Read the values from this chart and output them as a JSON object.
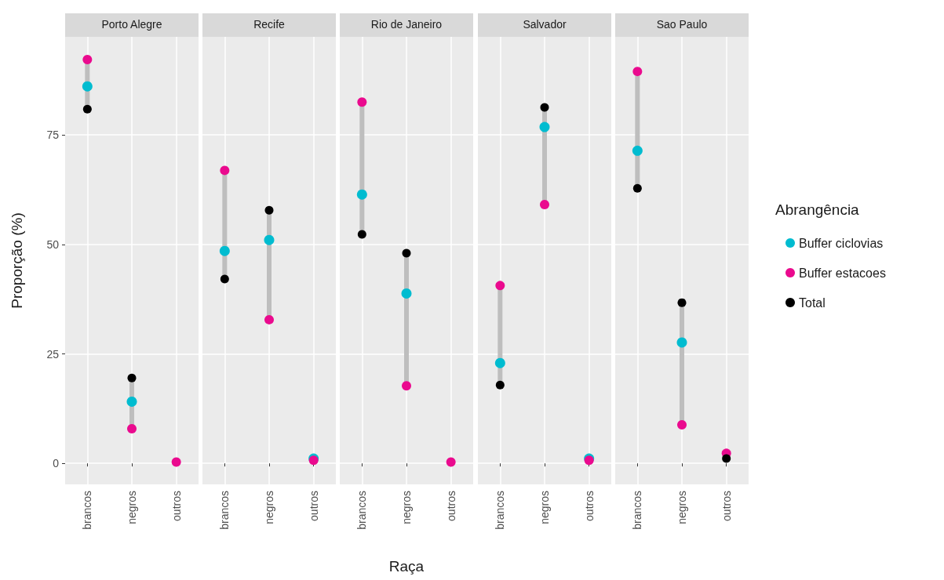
{
  "chart_data": [
    {
      "type": "scatter",
      "title": "Porto Alegre",
      "ylabel": "Proporção (%)",
      "categories": [
        "brancos",
        "negros",
        "outros"
      ],
      "ylim": [
        -4.8,
        97.4
      ],
      "yticks": [
        0,
        25,
        50,
        75
      ],
      "grid": true,
      "marker": "circle",
      "legend": false,
      "series": [
        {
          "color": "#00bcd0",
          "values": [
            86.1,
            14.1,
            null
          ]
        },
        {
          "color": "#ea0a8e",
          "values": [
            92.2,
            7.9,
            0.3
          ]
        },
        {
          "color": "#000000",
          "values": [
            80.9,
            19.5,
            null
          ]
        }
      ]
    },
    {
      "type": "scatter",
      "title": "Recife",
      "categories": [
        "brancos",
        "negros",
        "outros"
      ],
      "ylim": [
        -4.8,
        97.4
      ],
      "yticks": [
        0,
        25,
        50,
        75
      ],
      "grid": true,
      "marker": "circle",
      "legend": false,
      "tick_labels": "x",
      "series": [
        {
          "color": "#00bcd0",
          "values": [
            48.5,
            51.0,
            1.1
          ]
        },
        {
          "color": "#ea0a8e",
          "values": [
            66.9,
            32.8,
            0.7
          ]
        },
        {
          "color": "#000000",
          "values": [
            42.1,
            57.8,
            null
          ]
        }
      ]
    },
    {
      "type": "scatter",
      "title": "Rio de Janeiro",
      "xlabel": "Raça",
      "categories": [
        "brancos",
        "negros",
        "outros"
      ],
      "ylim": [
        -4.8,
        97.4
      ],
      "yticks": [
        0,
        25,
        50,
        75
      ],
      "grid": true,
      "marker": "circle",
      "legend": false,
      "tick_labels": "x",
      "series": [
        {
          "color": "#00bcd0",
          "values": [
            61.4,
            38.8,
            null
          ]
        },
        {
          "color": "#ea0a8e",
          "values": [
            82.5,
            17.7,
            0.3
          ]
        },
        {
          "color": "#000000",
          "values": [
            52.3,
            48.0,
            null
          ]
        }
      ]
    },
    {
      "type": "scatter",
      "title": "Salvador",
      "categories": [
        "brancos",
        "negros",
        "outros"
      ],
      "ylim": [
        -4.8,
        97.4
      ],
      "yticks": [
        0,
        25,
        50,
        75
      ],
      "grid": true,
      "marker": "circle",
      "legend": false,
      "tick_labels": "x",
      "series": [
        {
          "color": "#00bcd0",
          "values": [
            22.9,
            76.8,
            1.1
          ]
        },
        {
          "color": "#ea0a8e",
          "values": [
            40.6,
            59.1,
            0.7
          ]
        },
        {
          "color": "#000000",
          "values": [
            17.9,
            81.3,
            null
          ]
        }
      ]
    },
    {
      "type": "scatter",
      "title": "Sao Paulo",
      "legend_title": "Abrangência",
      "categories": [
        "brancos",
        "negros",
        "outros"
      ],
      "ylim": [
        -4.8,
        97.4
      ],
      "yticks": [
        0,
        25,
        50,
        75
      ],
      "grid": true,
      "marker": "circle",
      "legend": "right",
      "tick_labels": "x",
      "series": [
        {
          "name": "Buffer ciclovias",
          "color": "#00bcd0",
          "values": [
            71.4,
            27.6,
            null
          ]
        },
        {
          "name": "Buffer estacoes",
          "color": "#ea0a8e",
          "values": [
            89.5,
            8.8,
            2.3
          ]
        },
        {
          "name": "Total",
          "color": "#000000",
          "values": [
            62.8,
            36.7,
            1.1
          ]
        }
      ]
    }
  ]
}
